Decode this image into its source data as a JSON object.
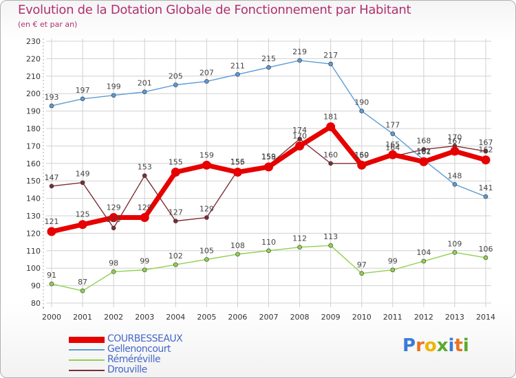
{
  "title": "Evolution de la Dotation Globale de Fonctionnement par Habitant",
  "subtitle": "(en € et par an)",
  "logo_text": "Proxiti",
  "chart_data": {
    "type": "line",
    "title": "Evolution de la Dotation Globale de Fonctionnement par Habitant",
    "subtitle": "(en € et par an)",
    "x": [
      "2000",
      "2001",
      "2002",
      "2003",
      "2004",
      "2005",
      "2006",
      "2007",
      "2008",
      "2009",
      "2010",
      "2011",
      "2012",
      "2013",
      "2014"
    ],
    "ylim": [
      80,
      230
    ],
    "yticks": [
      80,
      90,
      100,
      110,
      120,
      130,
      140,
      150,
      160,
      170,
      180,
      190,
      200,
      210,
      220,
      230
    ],
    "grid": true,
    "legend_position": "bottom-left",
    "series": [
      {
        "name": "COURBESSEAUX",
        "color": "#e60000",
        "values": [
          121,
          125,
          129,
          129,
          155,
          159,
          155,
          158,
          170,
          181,
          159,
          165,
          161,
          167,
          162
        ]
      },
      {
        "name": "Gellenoncourt",
        "color": "#5b9bd5",
        "values": [
          193,
          197,
          199,
          201,
          205,
          207,
          211,
          215,
          219,
          217,
          190,
          177,
          162,
          148,
          141
        ]
      },
      {
        "name": "Réméréville",
        "color": "#92d050",
        "values": [
          91,
          87,
          98,
          99,
          102,
          105,
          108,
          110,
          112,
          113,
          97,
          99,
          104,
          109,
          106
        ]
      },
      {
        "name": "Drouville",
        "color": "#7b2d35",
        "values": [
          147,
          149,
          123,
          153,
          127,
          129,
          156,
          159,
          174,
          160,
          160,
          164,
          168,
          170,
          167
        ]
      }
    ]
  }
}
